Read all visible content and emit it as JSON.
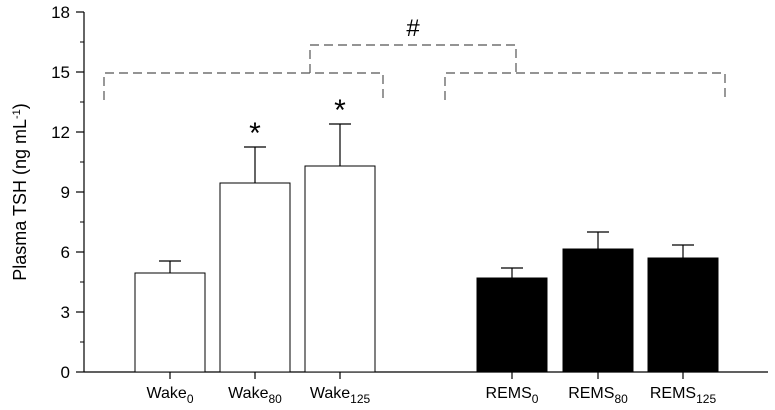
{
  "chart_data": {
    "type": "bar",
    "ylabel": {
      "prefix": "Plasma TSH (ng mL",
      "sup": "-1",
      "suffix": ")"
    },
    "ylim": [
      0,
      18
    ],
    "yticks": [
      0,
      3,
      6,
      9,
      12,
      15,
      18
    ],
    "categories": [
      {
        "base": "Wake",
        "sub": "0"
      },
      {
        "base": "Wake",
        "sub": "80"
      },
      {
        "base": "Wake",
        "sub": "125"
      },
      {
        "base": "REMS",
        "sub": "0"
      },
      {
        "base": "REMS",
        "sub": "80"
      },
      {
        "base": "REMS",
        "sub": "125"
      }
    ],
    "values": [
      4.95,
      9.45,
      10.3,
      4.7,
      6.15,
      5.7
    ],
    "errors": [
      0.6,
      1.8,
      2.1,
      0.5,
      0.85,
      0.65
    ],
    "fills": [
      "#ffffff",
      "#ffffff",
      "#ffffff",
      "#000000",
      "#000000",
      "#000000"
    ],
    "annotations": {
      "significance_marks": [
        "",
        "*",
        "*",
        "",
        "",
        ""
      ],
      "group_comparison_mark": "#"
    },
    "grid": false
  }
}
